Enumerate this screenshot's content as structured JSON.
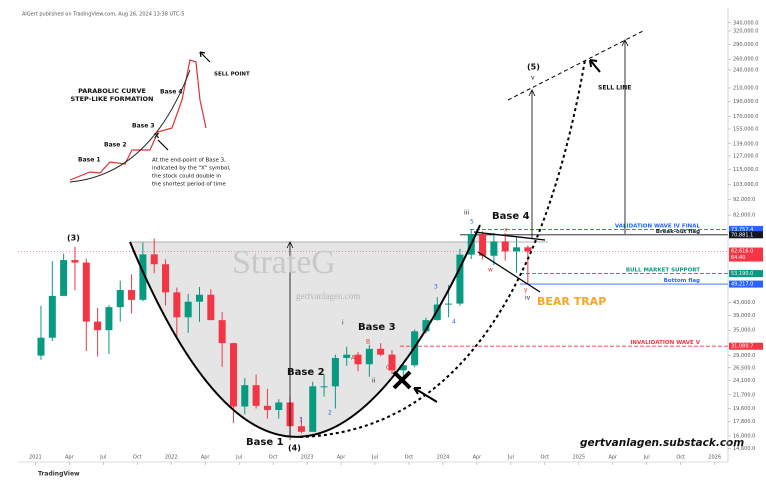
{
  "chart_data": {
    "type": "candlestick",
    "source": "AlGert published on TradingView.com, Aug 26, 2024 13:38 UTC-5",
    "platform": "TradingView",
    "x": [
      "2021-01",
      "2021-02",
      "2021-03",
      "2021-04",
      "2021-05",
      "2021-06",
      "2021-07",
      "2021-08",
      "2021-09",
      "2021-10",
      "2021-11",
      "2021-12",
      "2022-01",
      "2022-02",
      "2022-03",
      "2022-04",
      "2022-05",
      "2022-06",
      "2022-07",
      "2022-08",
      "2022-09",
      "2022-10",
      "2022-11",
      "2022-12",
      "2023-01",
      "2023-02",
      "2023-03",
      "2023-04",
      "2023-05",
      "2023-06",
      "2023-07",
      "2023-08",
      "2023-09",
      "2023-10",
      "2023-11",
      "2023-12",
      "2024-01",
      "2024-02",
      "2024-03",
      "2024-04",
      "2024-05",
      "2024-06",
      "2024-07",
      "2024-08"
    ],
    "open": [
      29000,
      33100,
      45100,
      58800,
      57700,
      37300,
      35000,
      41500,
      47100,
      43800,
      61300,
      57000,
      46300,
      38500,
      43200,
      45500,
      37700,
      31800,
      19900,
      23300,
      20000,
      19400,
      20500,
      17200,
      16500,
      23100,
      23100,
      28500,
      29200,
      27200,
      30500,
      29200,
      26000,
      27000,
      34700,
      37700,
      42300,
      42600,
      61200,
      71300,
      60700,
      67500,
      62700,
      64600
    ],
    "high": [
      41900,
      58300,
      61700,
      64800,
      59500,
      41300,
      42200,
      50500,
      52900,
      67000,
      69000,
      59100,
      48000,
      45800,
      48200,
      47400,
      40000,
      31900,
      24600,
      25200,
      22700,
      21000,
      21400,
      18400,
      23900,
      25200,
      29200,
      31000,
      29800,
      31400,
      31800,
      30200,
      27500,
      35200,
      38400,
      44700,
      48900,
      63900,
      73800,
      72700,
      71900,
      71900,
      70000,
      65600
    ],
    "low": [
      28100,
      32300,
      45000,
      47000,
      30000,
      28800,
      29300,
      37300,
      39600,
      43300,
      53300,
      42000,
      32900,
      34300,
      37200,
      37700,
      26700,
      17600,
      18800,
      19600,
      18200,
      18200,
      15500,
      16300,
      16500,
      21400,
      19600,
      26900,
      25800,
      24800,
      28900,
      25300,
      24900,
      26600,
      34100,
      37600,
      38500,
      41900,
      59300,
      59100,
      56600,
      58500,
      53500,
      49100
    ],
    "close": [
      33100,
      45100,
      58800,
      57700,
      37300,
      35000,
      41500,
      47100,
      43800,
      61300,
      57000,
      46300,
      38500,
      43200,
      45500,
      37700,
      31800,
      19900,
      23300,
      20000,
      19400,
      20500,
      17200,
      16500,
      23100,
      23100,
      28500,
      29200,
      27200,
      30500,
      29200,
      26000,
      27000,
      34700,
      37700,
      42300,
      42600,
      61200,
      71300,
      60700,
      67500,
      62700,
      64600,
      62616
    ],
    "up_color": "#089981",
    "down_color": "#f23645",
    "log_scale": true,
    "xlim": [
      "2020-12",
      "2026-02"
    ],
    "xticks": [
      {
        "value": "2021-01",
        "label": "2021"
      },
      {
        "value": "2021-04",
        "label": "Apr"
      },
      {
        "value": "2021-07",
        "label": "Jul"
      },
      {
        "value": "2021-10",
        "label": "Oct"
      },
      {
        "value": "2022-01",
        "label": "2022"
      },
      {
        "value": "2022-04",
        "label": "Apr"
      },
      {
        "value": "2022-07",
        "label": "Jul"
      },
      {
        "value": "2022-10",
        "label": "Oct"
      },
      {
        "value": "2023-01",
        "label": "2023"
      },
      {
        "value": "2023-04",
        "label": "Apr"
      },
      {
        "value": "2023-07",
        "label": "Jul"
      },
      {
        "value": "2023-10",
        "label": "Oct"
      },
      {
        "value": "2024-01",
        "label": "2024"
      },
      {
        "value": "2024-04",
        "label": "Apr"
      },
      {
        "value": "2024-07",
        "label": "Jul"
      },
      {
        "value": "2024-10",
        "label": "Oct"
      },
      {
        "value": "2025-01",
        "label": "2025"
      },
      {
        "value": "2025-04",
        "label": "Apr"
      },
      {
        "value": "2025-07",
        "label": "Jul"
      },
      {
        "value": "2025-10",
        "label": "Oct"
      },
      {
        "value": "2026-01",
        "label": "2026"
      }
    ],
    "ylim": [
      13900,
      363000
    ],
    "yticks": [
      {
        "value": 340000,
        "label": "340,000.0"
      },
      {
        "value": 320000,
        "label": "320,000.0"
      },
      {
        "value": 290000,
        "label": "290,000.0"
      },
      {
        "value": 260000,
        "label": "260,000.0"
      },
      {
        "value": 240000,
        "label": "240,000.0"
      },
      {
        "value": 210000,
        "label": "210,000.0"
      },
      {
        "value": 190000,
        "label": "190,000.0"
      },
      {
        "value": 170000,
        "label": "170,000.0"
      },
      {
        "value": 155000,
        "label": "155,000.0"
      },
      {
        "value": 139000,
        "label": "139,000.0"
      },
      {
        "value": 127000,
        "label": "127,000.0"
      },
      {
        "value": 115000,
        "label": "115,000.0"
      },
      {
        "value": 103000,
        "label": "103,000.0"
      },
      {
        "value": 92000,
        "label": "92,000.0"
      },
      {
        "value": 82000,
        "label": "82,000.0"
      },
      {
        "value": 43000,
        "label": "43,000.0"
      },
      {
        "value": 39000,
        "label": "39,000.0"
      },
      {
        "value": 35000,
        "label": "35,000.0"
      },
      {
        "value": 29000,
        "label": "29,000.0"
      },
      {
        "value": 26500,
        "label": "26,500.0"
      },
      {
        "value": 24100,
        "label": "24,100.0"
      },
      {
        "value": 21700,
        "label": "21,700.0"
      },
      {
        "value": 19600,
        "label": "19,600.0"
      },
      {
        "value": 17800,
        "label": "17,800.0"
      },
      {
        "value": 16000,
        "label": "16,000.0"
      },
      {
        "value": 14600,
        "label": "14,600.0"
      }
    ],
    "levels": [
      {
        "name": "VALIDATION WAVE IV FINAL",
        "value": 73757.4,
        "value_label": "73,757.4",
        "color": "#2962ff"
      },
      {
        "name": "Break-out flag",
        "value": 70881.1,
        "value_label": "70,881.1",
        "color": "#131722"
      },
      {
        "name": "BULL MARKET SUPPORT",
        "value": 53190,
        "value_label": "53,190.0",
        "color": "#089981"
      },
      {
        "name": "Bottom flag",
        "value": 49217,
        "value_label": "49,217.0",
        "color": "#2962ff"
      },
      {
        "name": "INVALIDATION WAVE V",
        "value": 31080.7,
        "value_label": "31,080.7",
        "color": "#f23645"
      }
    ],
    "current_price": {
      "value": 62616,
      "value_label": "62,616.0",
      "countdown": "64:40",
      "color": "#f23645"
    },
    "annotations": {
      "inset_title": [
        "PARABOLIC CURVE",
        "STEP-LIKE FORMATION"
      ],
      "inset_bases": [
        "Base 1",
        "Base 2",
        "Base 3",
        "Base 4"
      ],
      "inset_x": "X",
      "sell_point": "SELL POINT",
      "inset_note": [
        "At the end-point of Base 3,",
        "indicated by the \"X\" symbol,",
        "the stock could double in",
        "the shortest period of time"
      ],
      "bases": [
        "Base 1",
        "Base 2",
        "Base 3",
        "Base 4"
      ],
      "waves": [
        "(3)",
        "(4)",
        "(5)",
        "1",
        "2",
        "3",
        "4",
        "5",
        "i",
        "ii",
        "iii",
        "iv",
        "v",
        "A",
        "B",
        "C",
        "w",
        "x",
        "y"
      ],
      "sell_line": "SELL LINE",
      "watermark": "StrateG",
      "watermark_url": "gertvanlagen.com",
      "bear_trap": "BEAR TRAP",
      "website": "gertvanlagen.substack.com"
    }
  }
}
